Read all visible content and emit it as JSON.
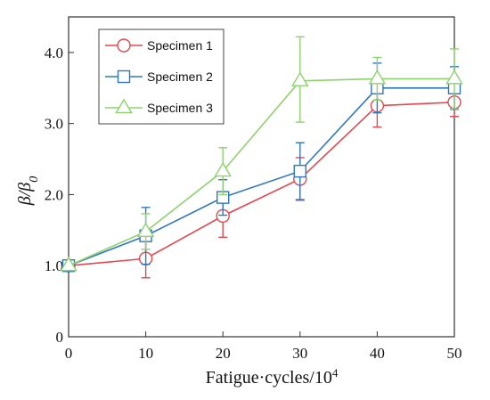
{
  "chart_data": {
    "type": "line",
    "xlabel": "Fatigue·cycles/10",
    "xlabel_exponent": "4",
    "ylabel": "β/β",
    "ylabel_subscript": "0",
    "xlim": [
      0,
      50
    ],
    "ylim": [
      0,
      4.5
    ],
    "x_ticks": [
      0,
      10,
      20,
      30,
      40,
      50
    ],
    "x_tick_labels": [
      "0",
      "10",
      "20",
      "30",
      "40",
      "50"
    ],
    "y_ticks": [
      0,
      1,
      2,
      3,
      4
    ],
    "y_tick_labels": [
      "0",
      "1.0",
      "2.0",
      "3.0",
      "4.0"
    ],
    "grid": false,
    "legend_position": "top-left",
    "x": [
      0,
      10,
      20,
      30,
      40,
      50
    ],
    "series": [
      {
        "name": "Specimen 1",
        "color": "#e8464f",
        "marker": "circle",
        "values": [
          1.0,
          1.1,
          1.7,
          2.22,
          3.25,
          3.3
        ],
        "err_low": [
          0,
          0.27,
          0.3,
          0.3,
          0.3,
          0.2
        ],
        "err_high": [
          0,
          0.27,
          0.3,
          0.3,
          0.3,
          0.2
        ]
      },
      {
        "name": "Specimen 2",
        "color": "#2e78c2",
        "marker": "square",
        "values": [
          1.0,
          1.42,
          1.96,
          2.33,
          3.5,
          3.5
        ],
        "err_low": [
          0,
          0.4,
          0.25,
          0.4,
          0.35,
          0.3
        ],
        "err_high": [
          0,
          0.4,
          0.25,
          0.4,
          0.35,
          0.3
        ]
      },
      {
        "name": "Specimen 3",
        "color": "#8dd36b",
        "marker": "triangle",
        "values": [
          1.0,
          1.48,
          2.33,
          3.6,
          3.63,
          3.63
        ],
        "err_low": [
          0,
          0.25,
          0.33,
          0.58,
          0.3,
          0.42
        ],
        "err_high": [
          0,
          0.25,
          0.33,
          0.62,
          0.3,
          0.42
        ]
      }
    ]
  }
}
